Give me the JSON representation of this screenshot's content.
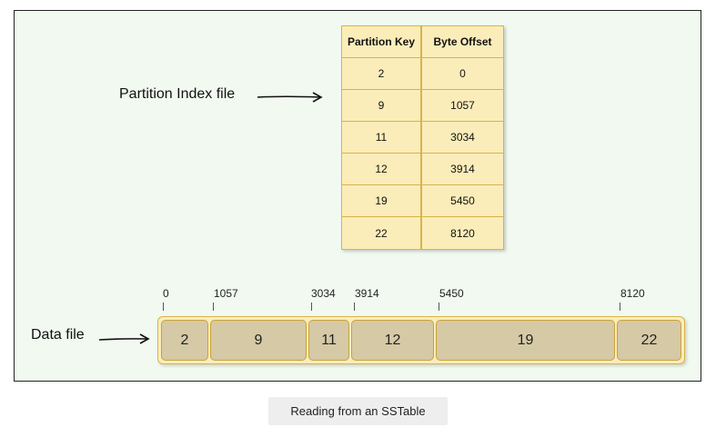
{
  "labels": {
    "index_file": "Partition Index file",
    "data_file": "Data file",
    "caption": "Reading from an SSTable"
  },
  "index_table": {
    "headers": [
      "Partition Key",
      "Byte Offset"
    ],
    "rows": [
      {
        "key": "2",
        "offset": "0"
      },
      {
        "key": "9",
        "offset": "1057"
      },
      {
        "key": "11",
        "offset": "3034"
      },
      {
        "key": "12",
        "offset": "3914"
      },
      {
        "key": "19",
        "offset": "5450"
      },
      {
        "key": "22",
        "offset": "8120"
      }
    ]
  },
  "data_file": {
    "blocks": [
      {
        "key": "2",
        "offset": "0"
      },
      {
        "key": "9",
        "offset": "1057"
      },
      {
        "key": "11",
        "offset": "3034"
      },
      {
        "key": "12",
        "offset": "3914"
      },
      {
        "key": "19",
        "offset": "5450"
      },
      {
        "key": "22",
        "offset": "8120"
      }
    ]
  },
  "colors": {
    "background": "#f1f9f0",
    "table_fill": "#fbedb9",
    "table_border": "#d9b34a",
    "block_fill": "#d5c9a6"
  }
}
